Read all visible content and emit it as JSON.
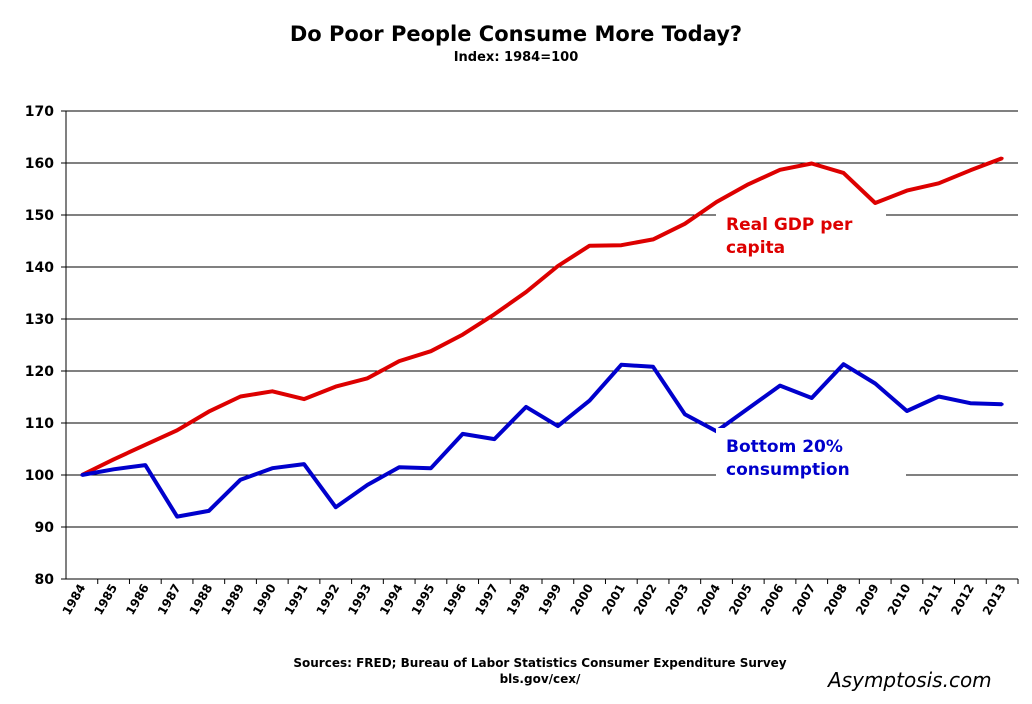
{
  "chart_data": {
    "type": "line",
    "title": "Do Poor People Consume More Today?",
    "subtitle": "Index: 1984=100",
    "xlabel": "",
    "ylabel": "",
    "ylim": [
      80,
      170
    ],
    "yticks": [
      "80",
      "90",
      "100",
      "110",
      "120",
      "130",
      "140",
      "150",
      "160",
      "170"
    ],
    "x": [
      "1984",
      "1985",
      "1986",
      "1987",
      "1988",
      "1989",
      "1990",
      "1991",
      "1992",
      "1993",
      "1994",
      "1995",
      "1996",
      "1997",
      "1998",
      "1999",
      "2000",
      "2001",
      "2002",
      "2003",
      "2004",
      "2005",
      "2006",
      "2007",
      "2008",
      "2009",
      "2010",
      "2011",
      "2012",
      "2013"
    ],
    "grid": true,
    "series": [
      {
        "name": "Real GDP per capita",
        "label_lines": [
          "Real GDP per",
          "capita"
        ],
        "color": "#dd0000",
        "values": [
          100,
          103,
          105.8,
          108.6,
          112.2,
          115.1,
          116.1,
          114.6,
          117,
          118.6,
          121.9,
          123.8,
          127,
          130.9,
          135.2,
          140.2,
          144.1,
          144.2,
          145.3,
          148.3,
          152.5,
          155.9,
          158.7,
          159.9,
          158.1,
          152.3,
          154.7,
          156.1,
          158.6,
          160.9
        ]
      },
      {
        "name": "Bottom 20% consumption",
        "label_lines": [
          "Bottom 20%",
          "consumption"
        ],
        "color": "#0000cc",
        "values": [
          100,
          101.1,
          101.9,
          92,
          93.1,
          99.1,
          101.3,
          102.1,
          93.8,
          98.1,
          101.5,
          101.3,
          107.9,
          106.9,
          113.1,
          109.4,
          114.3,
          121.2,
          120.8,
          111.7,
          108.4,
          112.8,
          117.2,
          114.8,
          121.3,
          117.6,
          112.3,
          115.1,
          113.8,
          113.6
        ]
      }
    ]
  },
  "source_line1": "Sources: FRED; Bureau of Labor Statistics Consumer Expenditure Survey",
  "source_line2": "bls.gov/cex/",
  "watermark": "Asymptosis.com"
}
